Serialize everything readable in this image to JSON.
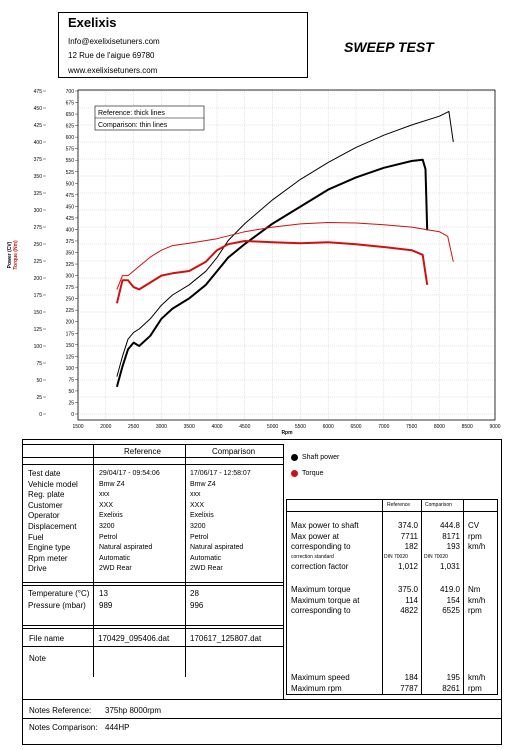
{
  "header": {
    "company": "Exelixis",
    "email": "Info@exelixisetuners.com",
    "address": "12 Rue de l'aigue 69780",
    "website": "www.exelixisetuners.com",
    "title": "SWEEP TEST"
  },
  "chart_data": {
    "type": "line",
    "xlabel": "Rpm",
    "ylabel_power": "Power (CV)",
    "ylabel_torque": "Torque (Nm)",
    "x_ticks": [
      "1500",
      "2000",
      "2500",
      "3000",
      "3500",
      "4000",
      "4500",
      "5000",
      "5500",
      "6000",
      "6500",
      "7000",
      "7500",
      "8000",
      "8500",
      "9000"
    ],
    "power_ticks": [
      "0",
      "25",
      "50",
      "75",
      "100",
      "125",
      "150",
      "175",
      "200",
      "225",
      "250",
      "275",
      "300",
      "325",
      "350",
      "375",
      "400",
      "425",
      "450",
      "475"
    ],
    "torque_ticks": [
      "0",
      "25",
      "50",
      "75",
      "100",
      "125",
      "150",
      "175",
      "200",
      "225",
      "250",
      "275",
      "300",
      "325",
      "350",
      "375",
      "400",
      "425",
      "450",
      "475",
      "500",
      "525",
      "550",
      "575",
      "600",
      "625",
      "650",
      "675",
      "700"
    ],
    "xlim": [
      1500,
      9000
    ],
    "ylim_power": [
      0,
      475
    ],
    "ylim_torque": [
      0,
      700
    ],
    "legend_box": [
      "Reference:  thick lines",
      "Comparison:  thin lines"
    ],
    "series": [
      {
        "name": "Shaft power (Reference)",
        "axis": "power",
        "color": "#000000",
        "width": 2,
        "x": [
          2200,
          2300,
          2400,
          2500,
          2600,
          2800,
          3000,
          3200,
          3500,
          3800,
          4000,
          4200,
          4500,
          5000,
          5500,
          6000,
          6500,
          7000,
          7500,
          7700,
          7750,
          7780
        ],
        "y": [
          40,
          70,
          95,
          105,
          100,
          115,
          140,
          155,
          170,
          190,
          210,
          230,
          250,
          280,
          305,
          330,
          348,
          362,
          372,
          374,
          360,
          270
        ]
      },
      {
        "name": "Shaft power (Comparison)",
        "axis": "power",
        "color": "#000000",
        "width": 1,
        "x": [
          2200,
          2300,
          2400,
          2500,
          2600,
          2800,
          3000,
          3200,
          3500,
          3800,
          4000,
          4200,
          4500,
          5000,
          5500,
          6000,
          6500,
          7000,
          7500,
          8000,
          8170,
          8250
        ],
        "y": [
          55,
          85,
          110,
          120,
          125,
          140,
          160,
          175,
          190,
          210,
          230,
          255,
          280,
          315,
          345,
          370,
          392,
          410,
          425,
          438,
          445,
          400
        ]
      },
      {
        "name": "Torque (Reference)",
        "axis": "torque",
        "color": "#d01010",
        "width": 2,
        "x": [
          2200,
          2300,
          2400,
          2500,
          2600,
          2800,
          3000,
          3200,
          3500,
          3800,
          4000,
          4200,
          4500,
          5000,
          5500,
          6000,
          6500,
          7000,
          7500,
          7700,
          7780
        ],
        "y": [
          240,
          290,
          290,
          275,
          270,
          285,
          300,
          305,
          310,
          330,
          355,
          368,
          375,
          372,
          370,
          372,
          368,
          362,
          355,
          345,
          280
        ]
      },
      {
        "name": "Torque (Comparison)",
        "axis": "torque",
        "color": "#d01010",
        "width": 1,
        "x": [
          2200,
          2300,
          2400,
          2500,
          2600,
          2800,
          3000,
          3200,
          3500,
          4000,
          4500,
          5000,
          5500,
          6000,
          6500,
          7000,
          7500,
          8000,
          8150,
          8250
        ],
        "y": [
          270,
          300,
          300,
          310,
          320,
          340,
          355,
          365,
          370,
          380,
          395,
          405,
          412,
          415,
          414,
          410,
          405,
          395,
          385,
          330
        ]
      }
    ]
  },
  "legend": {
    "shaft_power": "Shaft power",
    "torque": "Torque"
  },
  "colors": {
    "shaft": "#000000",
    "torque": "#d01010"
  },
  "params": {
    "col_reference": "Reference",
    "col_comparison": "Comparison",
    "rows": [
      {
        "label": "Test date",
        "ref": "29/04/17 - 09:54:06",
        "cmp": "17/06/17 - 12:58:07"
      },
      {
        "label": "Vehicle model",
        "ref": "Bmw Z4",
        "cmp": "Bmw Z4"
      },
      {
        "label": "Reg. plate",
        "ref": "xxx",
        "cmp": "xxx"
      },
      {
        "label": "Customer",
        "ref": "XXX",
        "cmp": "XXX"
      },
      {
        "label": "Operator",
        "ref": "Exelixis",
        "cmp": "Exelixis"
      },
      {
        "label": "Displacement",
        "ref": "3200",
        "cmp": "3200"
      },
      {
        "label": "Fuel",
        "ref": "Petrol",
        "cmp": "Petrol"
      },
      {
        "label": "Engine type",
        "ref": "Natural aspirated",
        "cmp": "Natural aspirated"
      },
      {
        "label": "Rpm meter",
        "ref": "Automatic",
        "cmp": "Automatic"
      },
      {
        "label": "Drive",
        "ref": "2WD Rear",
        "cmp": "2WD Rear"
      }
    ],
    "rows2": [
      {
        "label": "Temperature (°C)",
        "ref": "13",
        "cmp": "28"
      },
      {
        "label": "Pressure (mbar)",
        "ref": "989",
        "cmp": "996"
      }
    ],
    "file": {
      "label": "File name",
      "ref": "170429_095406.dat",
      "cmp": "170617_125807.dat"
    },
    "note_label": "Note"
  },
  "results": {
    "col_reference": "Reference",
    "col_comparison": "Comparison",
    "block1": [
      {
        "label": "Max power to shaft",
        "ref": "374.0",
        "cmp": "444.8",
        "unit": "CV"
      },
      {
        "label": "Max power at",
        "ref": "7711",
        "cmp": "8171",
        "unit": "rpm"
      },
      {
        "label": "corresponding to",
        "ref": "182",
        "cmp": "193",
        "unit": "km/h"
      }
    ],
    "standard_label": "correction standard",
    "standard_ref": "DIN 70020",
    "standard_cmp": "DIN 70020",
    "factor_label": "correction factor",
    "factor_ref": "1,012",
    "factor_cmp": "1,031",
    "block2": [
      {
        "label": "Maximum torque",
        "ref": "375.0",
        "cmp": "419.0",
        "unit": "Nm"
      },
      {
        "label": "Maximum torque at",
        "ref": "114",
        "cmp": "154",
        "unit": "km/h"
      },
      {
        "label": "corresponding to",
        "ref": "4822",
        "cmp": "6525",
        "unit": "rpm"
      }
    ],
    "block3": [
      {
        "label": "Maximum speed",
        "ref": "184",
        "cmp": "195",
        "unit": "km/h"
      },
      {
        "label": "Maximum rpm",
        "ref": "7787",
        "cmp": "8261",
        "unit": "rpm"
      }
    ]
  },
  "notes": {
    "ref_label": "Notes Reference:",
    "ref_value": "375hp 8000rpm",
    "cmp_label": "Notes Comparison:",
    "cmp_value": "444HP"
  }
}
